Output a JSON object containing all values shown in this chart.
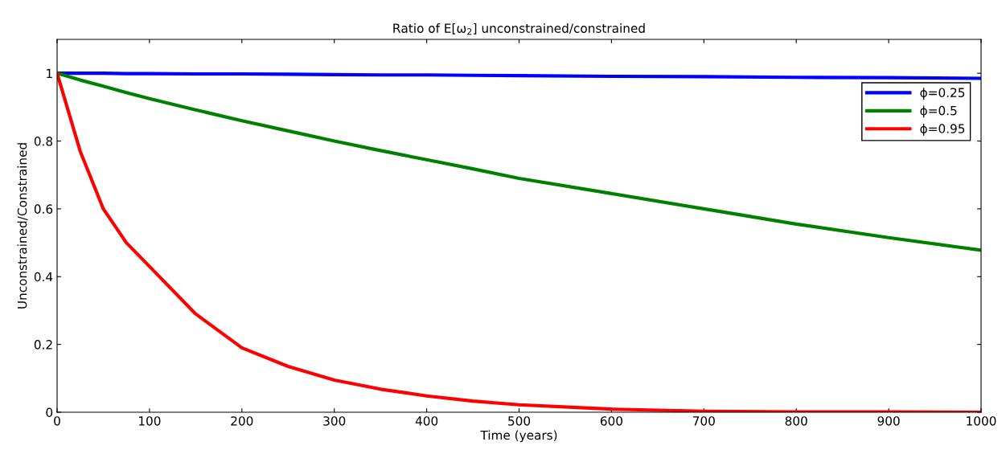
{
  "chart_data": {
    "type": "line",
    "title": "Ratio of E[ω$_{2}$] unconstrained/constrained",
    "xlabel": "Time (years)",
    "ylabel": "Unconstrained/Constrained",
    "x": [
      0,
      25,
      50,
      75,
      100,
      150,
      200,
      250,
      300,
      350,
      400,
      450,
      500,
      600,
      700,
      800,
      900,
      1000
    ],
    "series": [
      {
        "name": "ϕ=0.25",
        "color": "#0000ff",
        "values": [
          1,
          1,
          1,
          0.999,
          0.999,
          0.998,
          0.998,
          0.997,
          0.996,
          0.995,
          0.995,
          0.994,
          0.993,
          0.991,
          0.99,
          0.988,
          0.987,
          0.985
        ]
      },
      {
        "name": "ϕ=0.5",
        "color": "#008000",
        "values": [
          1,
          0.98,
          0.962,
          0.943,
          0.925,
          0.892,
          0.86,
          0.83,
          0.8,
          0.772,
          0.745,
          0.718,
          0.69,
          0.645,
          0.6,
          0.555,
          0.515,
          0.478
        ]
      },
      {
        "name": "ϕ=0.95",
        "color": "#ff0000",
        "values": [
          1,
          0.77,
          0.6,
          0.5,
          0.43,
          0.29,
          0.19,
          0.135,
          0.095,
          0.068,
          0.048,
          0.033,
          0.022,
          0.009,
          0.003,
          0.001,
          0.001,
          0
        ]
      }
    ],
    "xlim": [
      0,
      1000
    ],
    "xticks": [
      0,
      100,
      200,
      300,
      400,
      500,
      600,
      700,
      800,
      900,
      1000
    ],
    "ylim": [
      0,
      1.1
    ],
    "yticks": [
      0,
      0.2,
      0.4,
      0.6,
      0.8,
      1
    ],
    "grid": false,
    "legend": "top right",
    "line_style": "solid"
  }
}
